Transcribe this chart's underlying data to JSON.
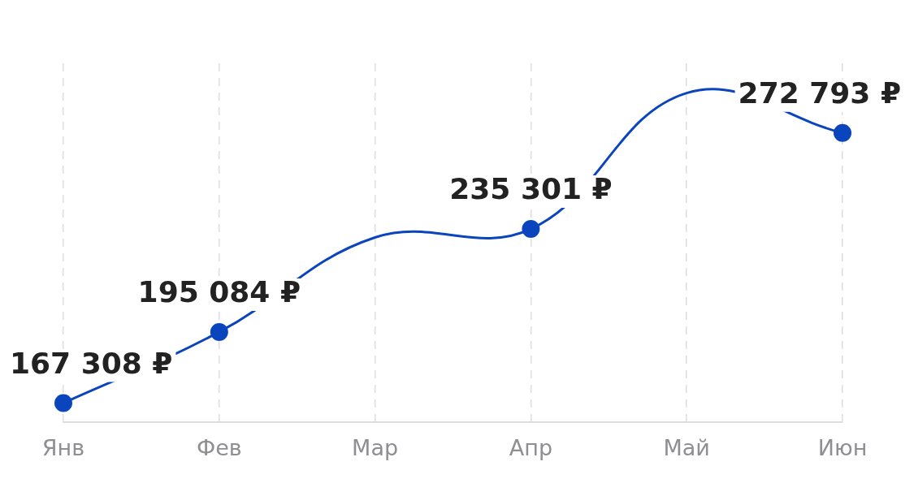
{
  "chart_data": {
    "type": "line",
    "categories": [
      "Янв",
      "Фев",
      "Мар",
      "Апр",
      "Май",
      "Июн"
    ],
    "series": [
      {
        "color": "#0a45bd",
        "values": [
          167308,
          195084,
          232000,
          235301,
          288400,
          272793
        ],
        "value_labels": [
          "167 308 ₽",
          "195 084 ₽",
          null,
          "235 301 ₽",
          null,
          "272 793 ₽"
        ]
      }
    ],
    "grid": "x",
    "legend": false,
    "marker": "circle",
    "line_style": "solid"
  }
}
